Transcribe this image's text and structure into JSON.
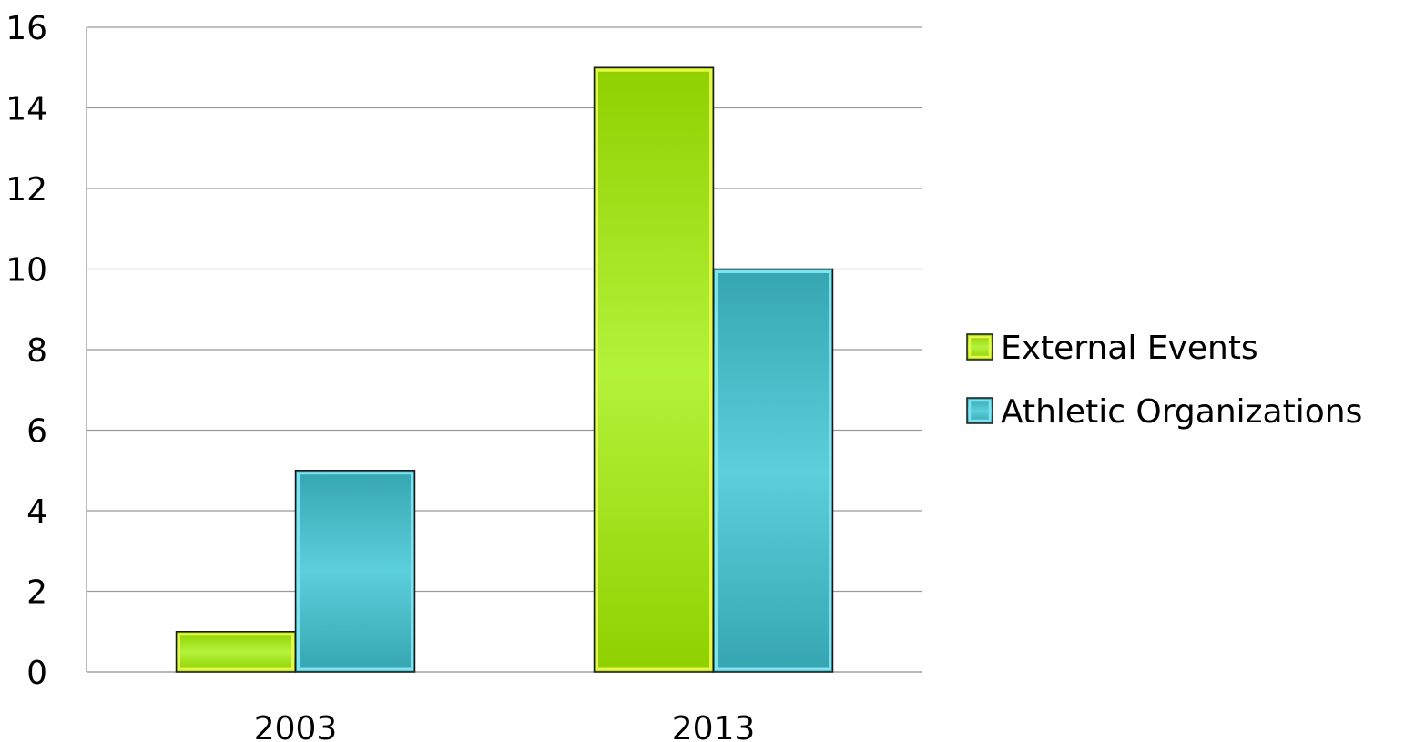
{
  "chart_data": {
    "type": "bar",
    "categories": [
      "2003",
      "2013"
    ],
    "series": [
      {
        "name": "External Events",
        "values": [
          1,
          15
        ],
        "color": "#9fe22a"
      },
      {
        "name": "Athletic Organizations",
        "values": [
          5,
          10
        ],
        "color": "#47c3cf"
      }
    ],
    "title": "",
    "xlabel": "",
    "ylabel": "",
    "ylim": [
      0,
      16
    ],
    "yticks": [
      "0",
      "2",
      "4",
      "6",
      "8",
      "10",
      "12",
      "14",
      "16"
    ],
    "grid": true,
    "legend": "right"
  }
}
